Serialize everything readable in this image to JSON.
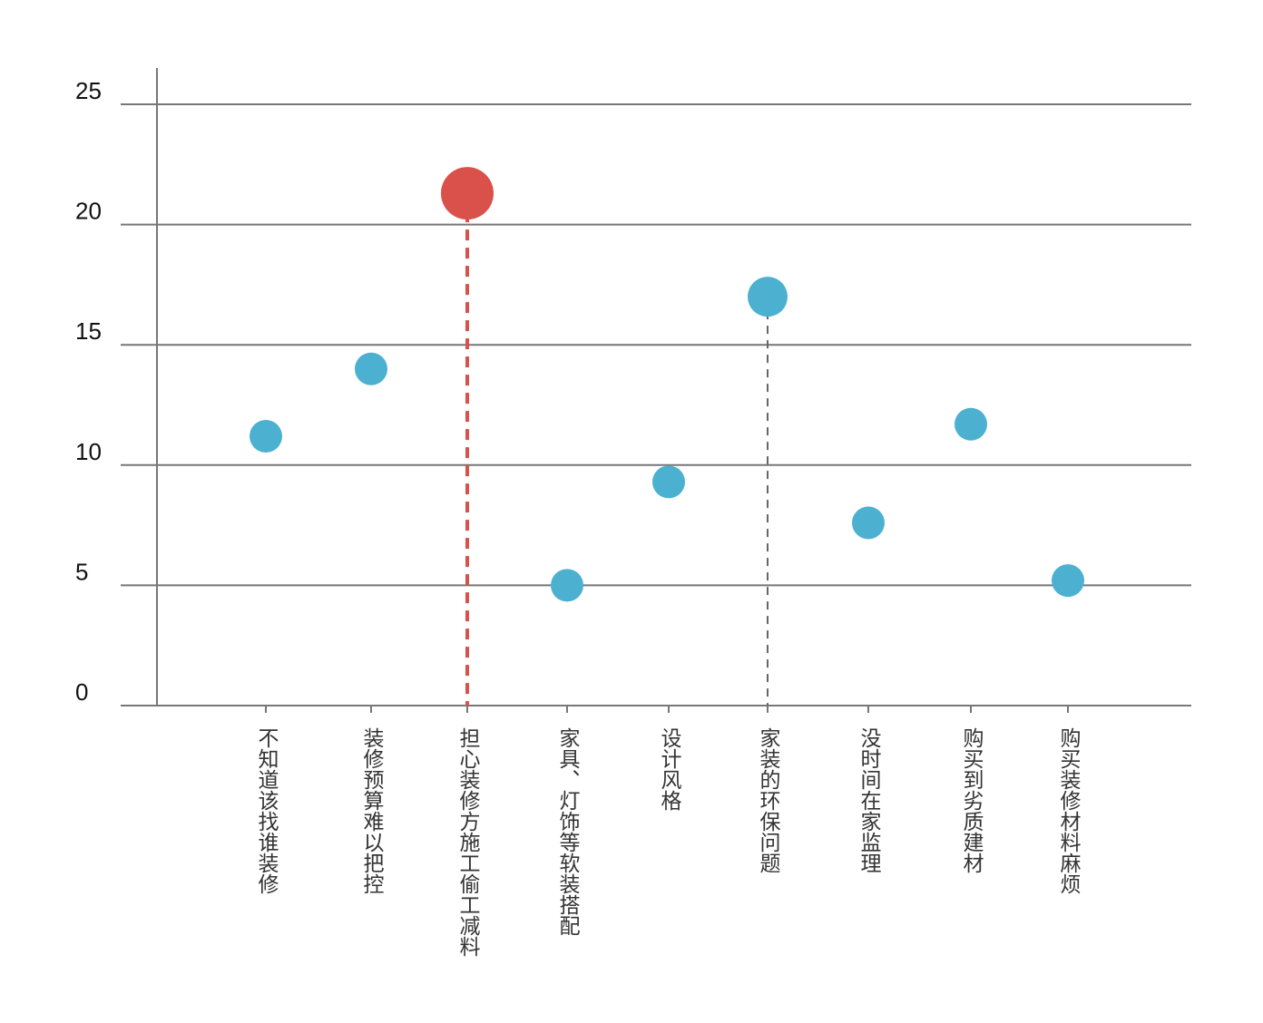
{
  "chart_data": {
    "type": "scatter",
    "categories": [
      "不知道该找谁装修",
      "装修预算难以把控",
      "担心装修方施工偷工减料",
      "家具、灯饰等软装搭配",
      "设计风格",
      "家装的环保问题",
      "没时间在家监理",
      "购买到劣质建材",
      "购买装修材料麻烦"
    ],
    "values": [
      11.2,
      14.0,
      21.3,
      5.0,
      9.3,
      17.0,
      7.6,
      11.7,
      5.2
    ],
    "highlight_index": 2,
    "secondary_index": 5,
    "ylim": [
      0,
      25
    ],
    "yticks": [
      "0",
      "5",
      "10",
      "15",
      "20",
      "25"
    ],
    "grid": true,
    "legend": "none",
    "title": "",
    "xlabel": "",
    "ylabel": "",
    "colors": {
      "point": "#4cb1d1",
      "highlight": "#d9514a",
      "grid": "#777777",
      "secondary_line": "#666666"
    }
  }
}
